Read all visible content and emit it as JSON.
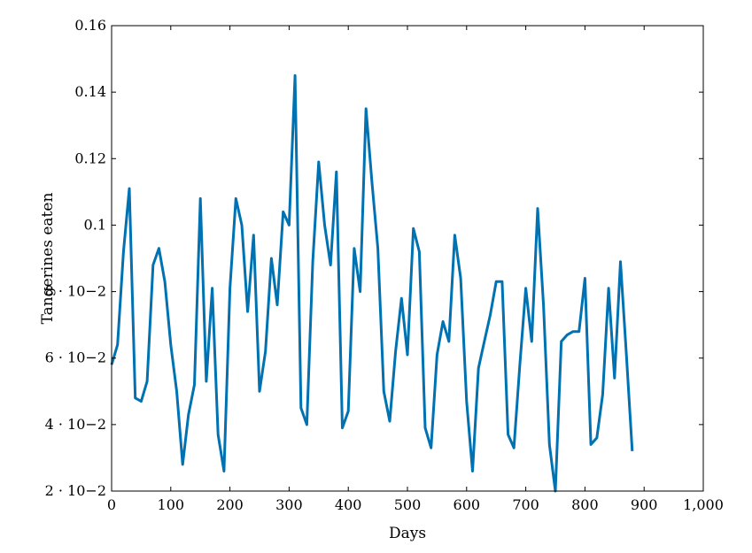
{
  "chart_data": {
    "type": "line",
    "title": "",
    "xlabel": "Days",
    "ylabel": "Tangerines eaten",
    "xlim": [
      0,
      1000
    ],
    "ylim": [
      0.02,
      0.16
    ],
    "grid": false,
    "x_ticks": [
      0,
      100,
      200,
      300,
      400,
      500,
      600,
      700,
      800,
      900,
      1000
    ],
    "x_tick_labels": [
      "0",
      "100",
      "200",
      "300",
      "400",
      "500",
      "600",
      "700",
      "800",
      "900",
      "1,000"
    ],
    "y_ticks": [
      0.02,
      0.04,
      0.06,
      0.08,
      0.1,
      0.12,
      0.14,
      0.16
    ],
    "y_tick_labels": [
      "2 · 10−2",
      "4 · 10−2",
      "6 · 10−2",
      "8 · 10−2",
      "0.1",
      "0.12",
      "0.14",
      "0.16"
    ],
    "series": [
      {
        "color": "#0072b2",
        "x": [
          0,
          10,
          20,
          30,
          40,
          50,
          60,
          70,
          80,
          90,
          100,
          110,
          120,
          130,
          140,
          150,
          160,
          170,
          180,
          190,
          200,
          210,
          220,
          230,
          240,
          250,
          260,
          270,
          280,
          290,
          300,
          310,
          320,
          330,
          340,
          350,
          360,
          370,
          380,
          390,
          400,
          410,
          420,
          430,
          440,
          450,
          460,
          470,
          480,
          490,
          500,
          510,
          520,
          530,
          540,
          550,
          560,
          570,
          580,
          590,
          600,
          610,
          620,
          630,
          640,
          650,
          660,
          670,
          680,
          690,
          700,
          710,
          720,
          730,
          740,
          750,
          760,
          770,
          780,
          790,
          800,
          810,
          820,
          830,
          840,
          850,
          860,
          870,
          880
        ],
        "y": [
          0.058,
          0.064,
          0.092,
          0.111,
          0.048,
          0.047,
          0.053,
          0.088,
          0.093,
          0.083,
          0.064,
          0.05,
          0.028,
          0.043,
          0.052,
          0.108,
          0.053,
          0.081,
          0.037,
          0.026,
          0.081,
          0.108,
          0.1,
          0.074,
          0.097,
          0.05,
          0.062,
          0.09,
          0.076,
          0.104,
          0.1,
          0.145,
          0.045,
          0.04,
          0.089,
          0.119,
          0.1,
          0.088,
          0.116,
          0.039,
          0.044,
          0.093,
          0.08,
          0.135,
          0.113,
          0.093,
          0.05,
          0.041,
          0.062,
          0.078,
          0.061,
          0.099,
          0.092,
          0.039,
          0.033,
          0.061,
          0.071,
          0.065,
          0.097,
          0.084,
          0.047,
          0.026,
          0.057,
          0.065,
          0.073,
          0.083,
          0.083,
          0.037,
          0.033,
          0.058,
          0.081,
          0.065,
          0.105,
          0.076,
          0.034,
          0.02,
          0.065,
          0.067,
          0.068,
          0.068,
          0.084,
          0.034,
          0.036,
          0.049,
          0.081,
          0.054,
          0.089,
          0.061,
          0.032
        ]
      }
    ]
  }
}
